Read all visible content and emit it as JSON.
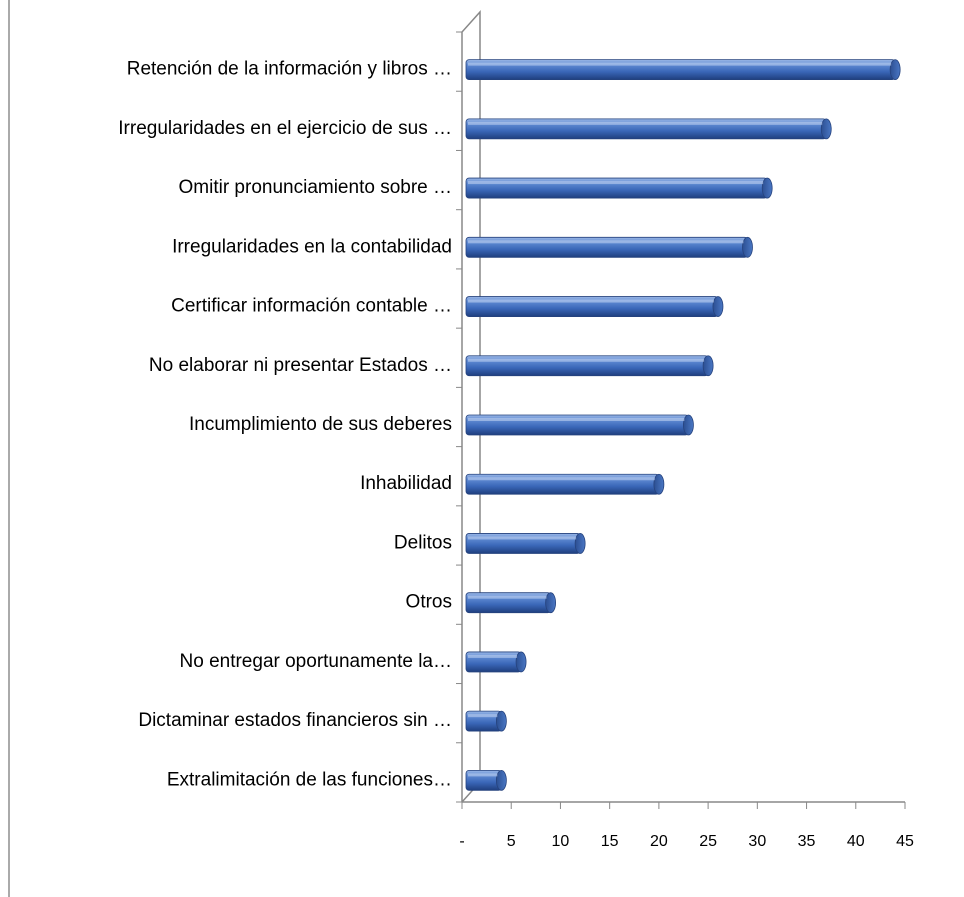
{
  "chart_data": {
    "type": "bar",
    "orientation": "horizontal",
    "style": "3d-cylinder",
    "bar_color": "#3a67b8",
    "grid": false,
    "legend": "none",
    "categories": [
      "Retención de la información y libros …",
      "Irregularidades en el ejercicio de sus …",
      "Omitir pronunciamiento sobre …",
      "Irregularidades en la contabilidad",
      "Certificar información contable …",
      "No elaborar ni presentar Estados …",
      "Incumplimiento de sus deberes",
      "Inhabilidad",
      "Delitos",
      "Otros",
      "No entregar oportunamente la…",
      "Dictaminar estados financieros sin …",
      "Extralimitación de las funciones…"
    ],
    "values": [
      44,
      37,
      31,
      29,
      26,
      25,
      23,
      20,
      12,
      9,
      6,
      4,
      4
    ],
    "xlim": [
      0,
      45
    ],
    "xticks": [
      0,
      5,
      10,
      15,
      20,
      25,
      30,
      35,
      40,
      45
    ],
    "xtick_labels": [
      "-",
      "5",
      "10",
      "15",
      "20",
      "25",
      "30",
      "35",
      "40",
      "45"
    ],
    "title": "",
    "xlabel": "",
    "ylabel": ""
  }
}
